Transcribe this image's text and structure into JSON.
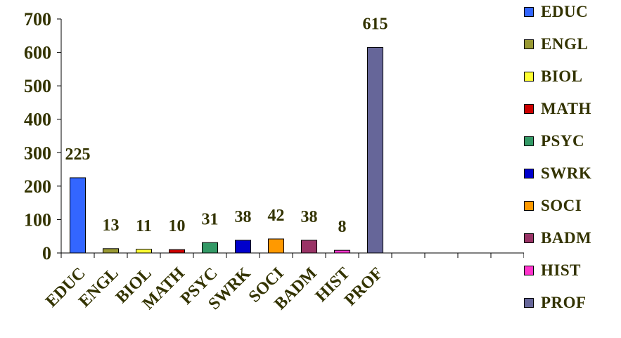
{
  "chart_data": {
    "type": "bar",
    "title": "",
    "xlabel": "",
    "ylabel": "",
    "categories": [
      "EDUC",
      "ENGL",
      "BIOL",
      "MATH",
      "PSYC",
      "SWRK",
      "SOCI",
      "BADM",
      "HIST",
      "PROF"
    ],
    "values": [
      225,
      13,
      11,
      10,
      31,
      38,
      42,
      38,
      8,
      615
    ],
    "data_labels": [
      "225",
      "13",
      "11",
      "10",
      "31",
      "38",
      "42",
      "38",
      "8",
      "615"
    ],
    "colors": [
      "#3366FF",
      "#999933",
      "#FFFF33",
      "#CC0000",
      "#339966",
      "#0000CC",
      "#FF9900",
      "#993366",
      "#FF33CC",
      "#666699"
    ],
    "ylim": [
      0,
      700
    ],
    "yticks": [
      "0",
      "100",
      "200",
      "300",
      "400",
      "500",
      "600",
      "700"
    ],
    "empty_category_slots": 4,
    "grid": false,
    "legend_position": "right"
  }
}
